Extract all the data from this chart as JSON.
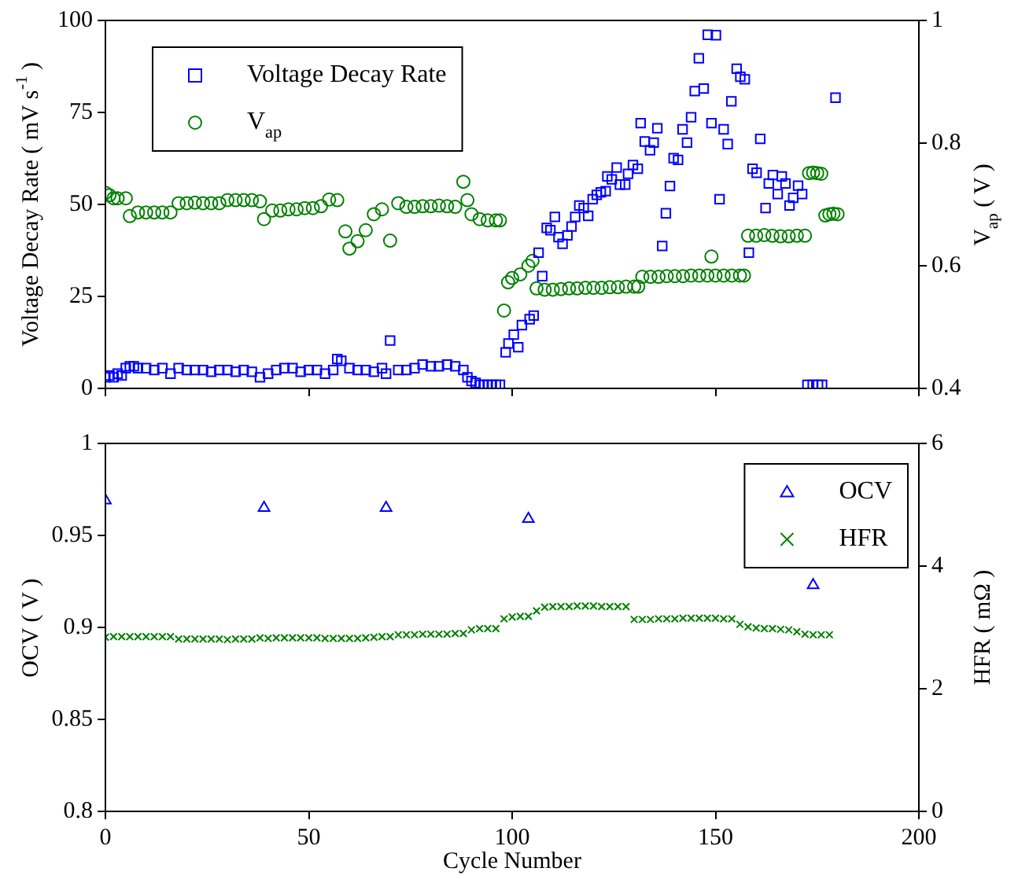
{
  "chart_data": [
    {
      "type": "scatter",
      "xlim": [
        0,
        200
      ],
      "xticks": [
        0,
        50,
        100,
        150,
        200
      ],
      "ylim": [
        0,
        100
      ],
      "yticks": [
        0,
        25,
        50,
        75,
        100
      ],
      "y2lim": [
        0.4,
        1
      ],
      "y2ticks": [
        0.4,
        0.6,
        0.8,
        1
      ],
      "ylabel": "Voltage Decay Rate ( mV s$^{-1}$ )",
      "y2label": "V$_{ap}$ ( V )",
      "tick_labels": "y",
      "legend": "top left",
      "series": [
        {
          "name": "Voltage Decay Rate",
          "color": "#0000ff",
          "marker": "square",
          "x": [
            0,
            1,
            2,
            3,
            4,
            5,
            6,
            7,
            8,
            10,
            12,
            14,
            16,
            18,
            20,
            22,
            24,
            26,
            28,
            30,
            32,
            34,
            36,
            38,
            40,
            42,
            44,
            46,
            48,
            50,
            52,
            54,
            56,
            57,
            58,
            60,
            62,
            64,
            66,
            68,
            69,
            70,
            72,
            74,
            76,
            78,
            80,
            82,
            84,
            86,
            88,
            89,
            90,
            91,
            92,
            93,
            94,
            95,
            96,
            97,
            98.4,
            99.1,
            100.4,
            101.5,
            102.4,
            104.3,
            105.3,
            106.5,
            107.4,
            108.5,
            109.4,
            110.5,
            111.4,
            112.4,
            113.6,
            114.6,
            115.5,
            116.5,
            117.6,
            118.7,
            119.8,
            120.8,
            121.8,
            123,
            123.4,
            124.5,
            125.7,
            126.5,
            127.8,
            128.5,
            129.7,
            130.9,
            131.6,
            132.6,
            133.9,
            134.8,
            135.7,
            136.9,
            137.8,
            138.8,
            139.7,
            140.8,
            141.9,
            143,
            144,
            144.9,
            145.9,
            147.1,
            148.1,
            149,
            150.1,
            151,
            152,
            153,
            153.9,
            155.2,
            156.1,
            157.2,
            158.2,
            159.1,
            160.1,
            161,
            162.3,
            163.1,
            164.1,
            165.3,
            166.3,
            167.2,
            168.2,
            169.1,
            170.3,
            171.3,
            172.6,
            173.9,
            175.2,
            176.2,
            179.5
          ],
          "values": [
            3,
            3.5,
            3,
            4,
            3.5,
            5.5,
            6,
            6,
            5.5,
            5.5,
            5,
            5.5,
            4,
            5.5,
            5,
            5,
            5,
            4.5,
            5,
            5,
            4.5,
            5,
            4.5,
            3,
            4,
            5,
            5.5,
            5.5,
            4.5,
            5,
            5,
            4,
            5,
            8,
            7.5,
            5.5,
            5,
            5,
            4.5,
            5.5,
            4,
            13,
            5,
            5,
            5.5,
            6.5,
            6,
            6,
            6.5,
            6,
            5,
            3,
            2,
            1.5,
            1,
            1,
            1,
            1,
            1,
            1,
            9.8,
            12.2,
            14.6,
            11.2,
            17.2,
            18.8,
            19.8,
            36.9,
            30.5,
            43.6,
            43,
            46.6,
            41.1,
            39.3,
            41.6,
            44,
            46.6,
            49.7,
            49,
            46.9,
            51.4,
            52.6,
            53.3,
            53.6,
            57.6,
            56.8,
            60,
            55.4,
            55.4,
            58.3,
            60.7,
            59.7,
            72.1,
            67.1,
            64.7,
            66.8,
            70.7,
            38.7,
            47.6,
            55,
            62.6,
            62.1,
            70.4,
            66.8,
            73.7,
            80.8,
            89.7,
            81.5,
            96.1,
            72.1,
            96,
            51.4,
            70.4,
            66.4,
            78,
            86.9,
            84.7,
            84,
            36.9,
            59.7,
            58.6,
            67.8,
            49,
            55.7,
            58,
            52.8,
            57.6,
            55.7,
            49.7,
            51.8,
            55.1,
            52.8,
            1,
            1,
            1,
            1,
            79
          ]
        },
        {
          "name": "V$_{ap}$",
          "color": "#008000",
          "marker": "circle",
          "axis": "y2",
          "x": [
            0,
            1,
            2,
            3,
            5,
            6,
            8,
            10,
            12,
            14,
            16,
            18,
            20,
            22,
            24,
            26,
            28,
            30,
            32,
            34,
            36,
            38,
            39,
            41,
            43,
            45,
            47,
            49,
            51,
            53,
            55,
            57,
            59,
            60,
            62,
            64,
            66,
            68,
            70,
            72,
            74,
            76,
            78,
            80,
            82,
            84,
            86,
            88,
            89,
            90,
            92,
            94,
            96,
            97,
            98,
            99,
            100,
            102,
            104,
            105,
            106,
            108,
            110,
            112,
            114,
            116,
            118,
            120,
            122,
            124,
            126,
            128,
            130,
            131,
            132,
            134,
            136,
            138,
            140,
            142,
            144,
            146,
            148,
            149,
            150,
            152,
            154,
            156,
            157,
            158,
            160,
            162,
            164,
            166,
            168,
            170,
            172,
            173,
            174,
            175,
            176,
            177,
            178,
            179,
            180
          ],
          "values": [
            0.719,
            0.715,
            0.71,
            0.71,
            0.71,
            0.681,
            0.687,
            0.687,
            0.687,
            0.687,
            0.687,
            0.702,
            0.702,
            0.703,
            0.702,
            0.702,
            0.702,
            0.707,
            0.707,
            0.707,
            0.707,
            0.705,
            0.676,
            0.69,
            0.69,
            0.692,
            0.692,
            0.694,
            0.694,
            0.697,
            0.708,
            0.707,
            0.656,
            0.628,
            0.64,
            0.658,
            0.684,
            0.692,
            0.641,
            0.702,
            0.696,
            0.696,
            0.697,
            0.697,
            0.698,
            0.697,
            0.696,
            0.737,
            0.707,
            0.684,
            0.676,
            0.674,
            0.674,
            0.674,
            0.527,
            0.573,
            0.58,
            0.586,
            0.6,
            0.608,
            0.563,
            0.561,
            0.561,
            0.562,
            0.563,
            0.563,
            0.564,
            0.564,
            0.564,
            0.565,
            0.565,
            0.566,
            0.566,
            0.566,
            0.582,
            0.582,
            0.582,
            0.583,
            0.583,
            0.583,
            0.584,
            0.584,
            0.584,
            0.615,
            0.584,
            0.584,
            0.584,
            0.584,
            0.584,
            0.649,
            0.649,
            0.65,
            0.649,
            0.648,
            0.648,
            0.649,
            0.649,
            0.751,
            0.752,
            0.751,
            0.75,
            0.682,
            0.684,
            0.685,
            0.684
          ]
        }
      ]
    },
    {
      "type": "scatter",
      "xlim": [
        0,
        200
      ],
      "xticks": [
        0,
        50,
        100,
        150,
        200
      ],
      "ylim": [
        0.8,
        1
      ],
      "yticks": [
        0.8,
        0.85,
        0.9,
        0.95,
        1
      ],
      "y2lim": [
        0,
        6
      ],
      "y2ticks": [
        0,
        2,
        4,
        6
      ],
      "xlabel": "Cycle Number",
      "ylabel": "OCV ( V )",
      "y2label": "HFR ( mΩ )",
      "legend": "top right",
      "series": [
        {
          "name": "OCV",
          "color": "#0000ff",
          "marker": "triangle",
          "x": [
            0,
            39,
            69,
            104,
            174
          ],
          "values": [
            0.969,
            0.965,
            0.965,
            0.959,
            0.923
          ]
        },
        {
          "name": "HFR",
          "color": "#008000",
          "marker": "cross",
          "axis": "y2",
          "x": [
            0,
            2,
            4,
            6,
            8,
            10,
            12,
            14,
            16,
            18,
            20,
            22,
            24,
            26,
            28,
            30,
            32,
            34,
            36,
            38,
            40,
            42,
            44,
            46,
            48,
            50,
            52,
            54,
            56,
            58,
            60,
            62,
            64,
            66,
            68,
            70,
            72,
            74,
            76,
            78,
            80,
            82,
            84,
            86,
            88,
            90,
            92,
            94,
            96,
            98,
            100,
            102,
            104,
            106,
            108,
            110,
            112,
            114,
            116,
            118,
            120,
            122,
            124,
            126,
            128,
            130,
            132,
            134,
            136,
            138,
            140,
            142,
            144,
            146,
            148,
            150,
            152,
            154,
            156,
            158,
            160,
            162,
            164,
            166,
            168,
            170,
            172,
            174,
            176,
            178
          ],
          "values": [
            2.84,
            2.85,
            2.85,
            2.85,
            2.85,
            2.85,
            2.85,
            2.85,
            2.85,
            2.81,
            2.81,
            2.81,
            2.81,
            2.81,
            2.81,
            2.8,
            2.81,
            2.81,
            2.81,
            2.83,
            2.82,
            2.83,
            2.83,
            2.83,
            2.83,
            2.83,
            2.83,
            2.82,
            2.82,
            2.82,
            2.82,
            2.82,
            2.83,
            2.84,
            2.85,
            2.85,
            2.88,
            2.88,
            2.88,
            2.89,
            2.89,
            2.89,
            2.89,
            2.9,
            2.9,
            2.96,
            2.98,
            2.98,
            2.98,
            3.14,
            3.17,
            3.18,
            3.18,
            3.27,
            3.33,
            3.34,
            3.34,
            3.34,
            3.35,
            3.35,
            3.35,
            3.34,
            3.34,
            3.34,
            3.34,
            3.13,
            3.13,
            3.13,
            3.14,
            3.14,
            3.14,
            3.15,
            3.15,
            3.15,
            3.15,
            3.15,
            3.14,
            3.14,
            3.05,
            3.01,
            2.99,
            2.98,
            2.98,
            2.97,
            2.96,
            2.93,
            2.89,
            2.88,
            2.88,
            2.88
          ]
        }
      ]
    }
  ]
}
